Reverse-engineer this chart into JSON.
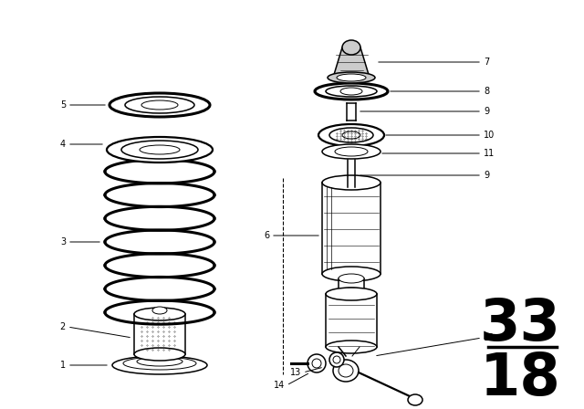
{
  "bg_color": "#ffffff",
  "line_color": "#000000",
  "figsize": [
    6.4,
    4.48
  ],
  "dpi": 100,
  "section_number": "33",
  "section_sub": "18"
}
